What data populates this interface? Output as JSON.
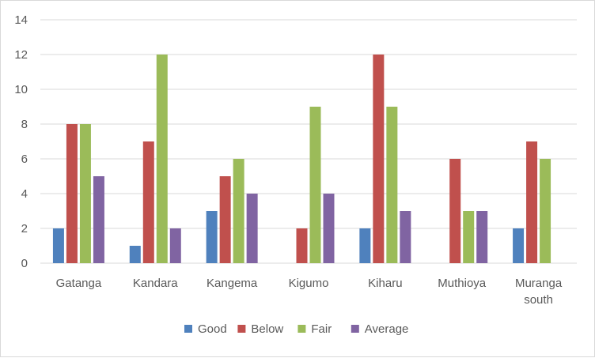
{
  "chart_data": {
    "type": "bar",
    "title": "",
    "xlabel": "",
    "ylabel": "",
    "ylim": [
      0,
      14
    ],
    "yticks": [
      0,
      2,
      4,
      6,
      8,
      10,
      12,
      14
    ],
    "grid": true,
    "legend_position": "bottom",
    "categories": [
      [
        "Gatanga"
      ],
      [
        "Kandara"
      ],
      [
        "Kangema"
      ],
      [
        "Kigumo"
      ],
      [
        "Kiharu"
      ],
      [
        "Muthioya"
      ],
      [
        "Muranga",
        "south"
      ]
    ],
    "series": [
      {
        "name": "Good",
        "color": "#4f81bd",
        "values": [
          2,
          1,
          3,
          0,
          2,
          0,
          2
        ]
      },
      {
        "name": "Below",
        "color": "#c0504d",
        "values": [
          8,
          7,
          5,
          2,
          12,
          6,
          7
        ]
      },
      {
        "name": "Fair",
        "color": "#9bbb59",
        "values": [
          8,
          12,
          6,
          9,
          9,
          3,
          6
        ]
      },
      {
        "name": "Average",
        "color": "#8064a2",
        "values": [
          5,
          2,
          4,
          4,
          3,
          3,
          0
        ]
      }
    ]
  }
}
